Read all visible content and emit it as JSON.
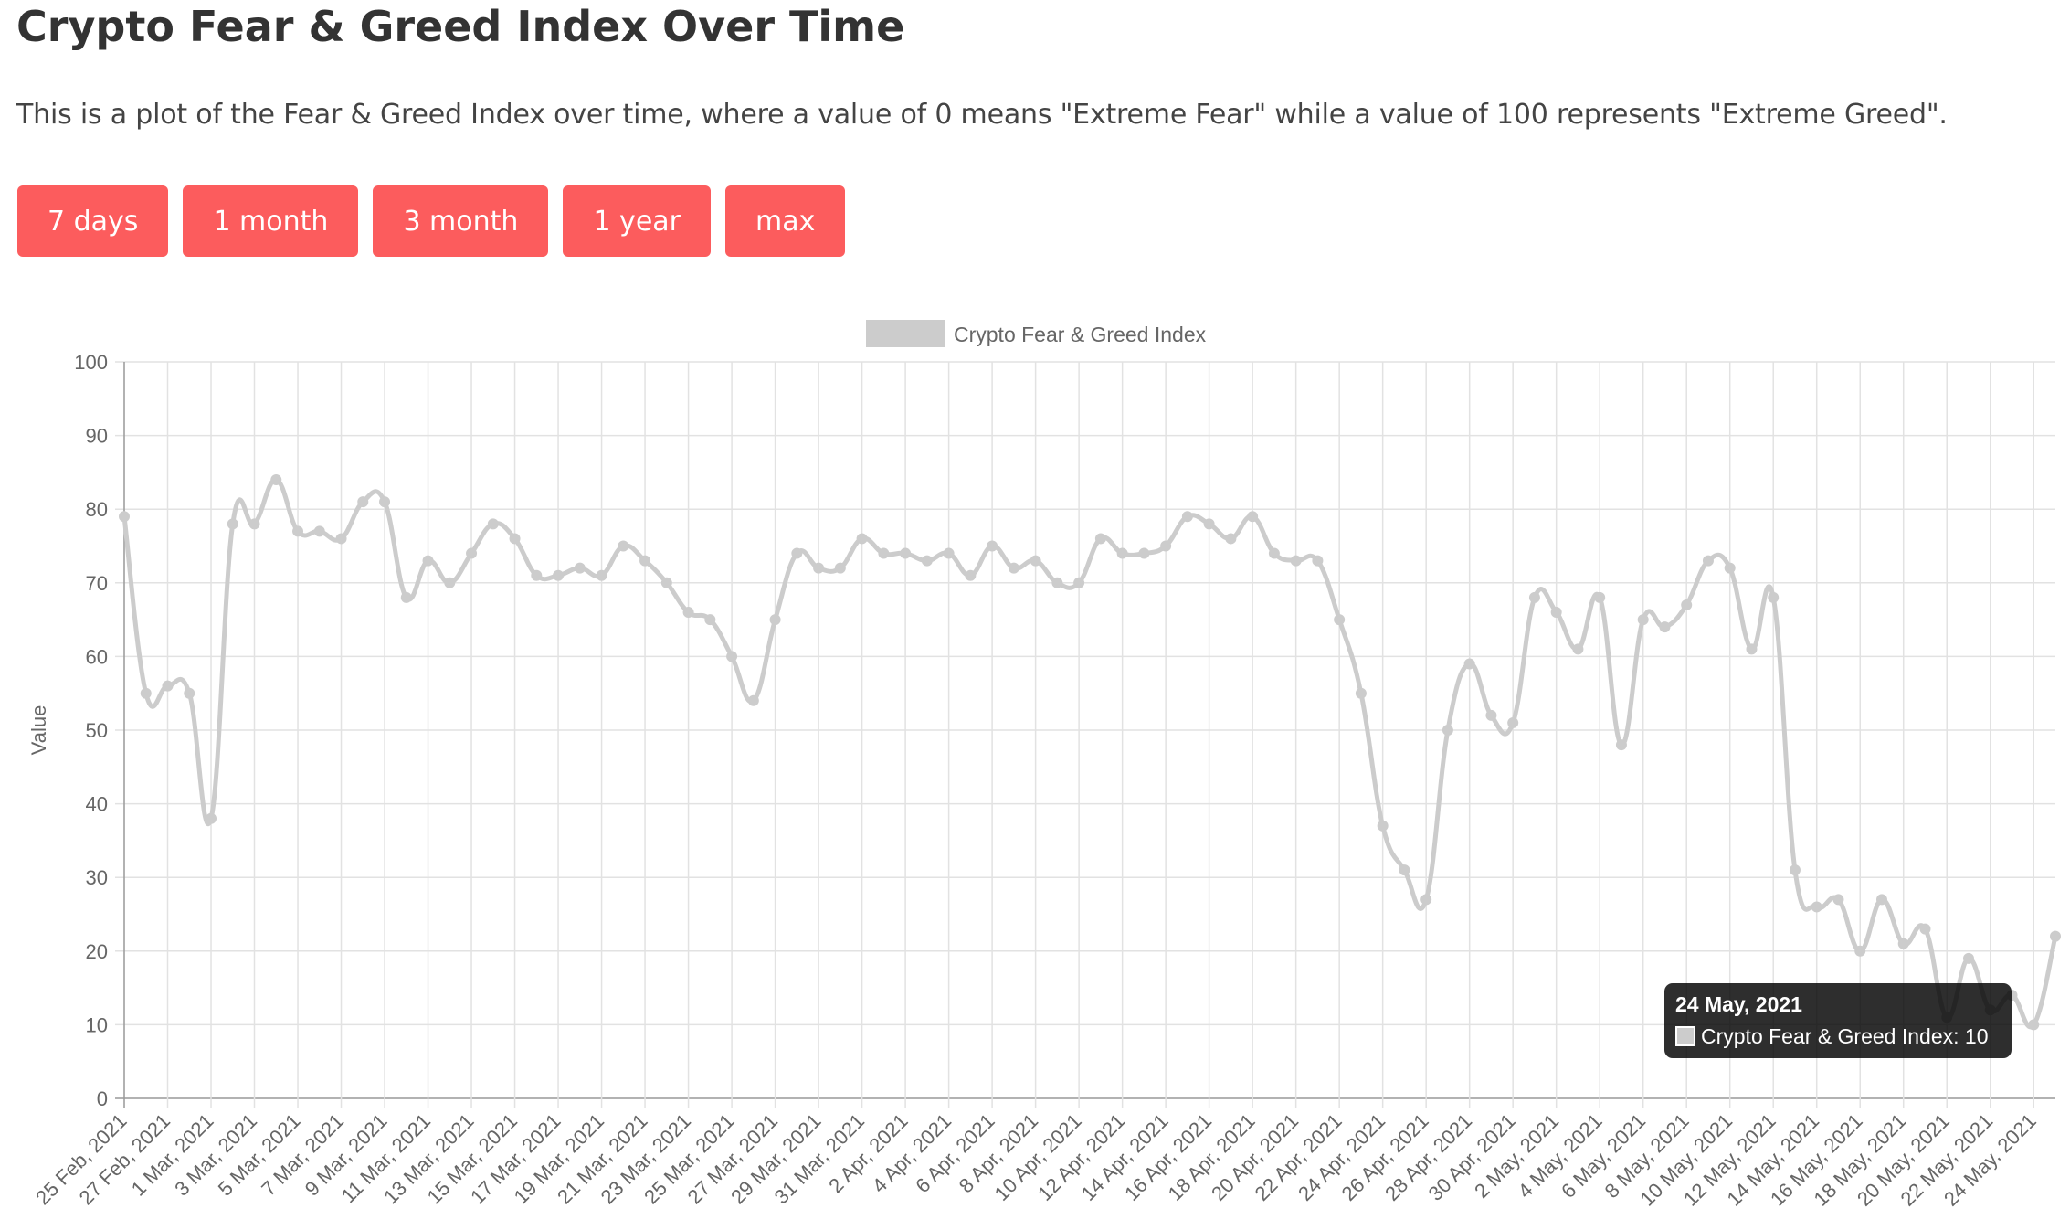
{
  "page": {
    "title": "Crypto Fear & Greed Index Over Time",
    "description": "This is a plot of the Fear & Greed Index over time, where a value of 0 means \"Extreme Fear\" while a value of 100 represents \"Extreme Greed\"."
  },
  "buttons": [
    {
      "label": "7 days"
    },
    {
      "label": "1 month"
    },
    {
      "label": "3 month"
    },
    {
      "label": "1 year"
    },
    {
      "label": "max"
    }
  ],
  "tooltip": {
    "title": "24 May, 2021",
    "label": "Crypto Fear & Greed Index: 10"
  },
  "chart_data": {
    "type": "line",
    "title": "",
    "ylabel": "Value",
    "xlabel": "",
    "ylim": [
      0,
      100
    ],
    "y_ticks": [
      0,
      10,
      20,
      30,
      40,
      50,
      60,
      70,
      80,
      90,
      100
    ],
    "grid": true,
    "legend_position": "top",
    "line_color": "#cccccc",
    "x": [
      "25 Feb, 2021",
      "26 Feb, 2021",
      "27 Feb, 2021",
      "28 Feb, 2021",
      "1 Mar, 2021",
      "2 Mar, 2021",
      "3 Mar, 2021",
      "4 Mar, 2021",
      "5 Mar, 2021",
      "6 Mar, 2021",
      "7 Mar, 2021",
      "8 Mar, 2021",
      "9 Mar, 2021",
      "10 Mar, 2021",
      "11 Mar, 2021",
      "12 Mar, 2021",
      "13 Mar, 2021",
      "14 Mar, 2021",
      "15 Mar, 2021",
      "16 Mar, 2021",
      "17 Mar, 2021",
      "18 Mar, 2021",
      "19 Mar, 2021",
      "20 Mar, 2021",
      "21 Mar, 2021",
      "22 Mar, 2021",
      "23 Mar, 2021",
      "24 Mar, 2021",
      "25 Mar, 2021",
      "26 Mar, 2021",
      "27 Mar, 2021",
      "28 Mar, 2021",
      "29 Mar, 2021",
      "30 Mar, 2021",
      "31 Mar, 2021",
      "1 Apr, 2021",
      "2 Apr, 2021",
      "3 Apr, 2021",
      "4 Apr, 2021",
      "5 Apr, 2021",
      "6 Apr, 2021",
      "7 Apr, 2021",
      "8 Apr, 2021",
      "9 Apr, 2021",
      "10 Apr, 2021",
      "11 Apr, 2021",
      "12 Apr, 2021",
      "13 Apr, 2021",
      "14 Apr, 2021",
      "15 Apr, 2021",
      "16 Apr, 2021",
      "17 Apr, 2021",
      "18 Apr, 2021",
      "19 Apr, 2021",
      "20 Apr, 2021",
      "21 Apr, 2021",
      "22 Apr, 2021",
      "23 Apr, 2021",
      "24 Apr, 2021",
      "25 Apr, 2021",
      "26 Apr, 2021",
      "27 Apr, 2021",
      "28 Apr, 2021",
      "29 Apr, 2021",
      "30 Apr, 2021",
      "1 May, 2021",
      "2 May, 2021",
      "3 May, 2021",
      "4 May, 2021",
      "5 May, 2021",
      "6 May, 2021",
      "7 May, 2021",
      "8 May, 2021",
      "9 May, 2021",
      "10 May, 2021",
      "11 May, 2021",
      "12 May, 2021",
      "13 May, 2021",
      "14 May, 2021",
      "15 May, 2021",
      "16 May, 2021",
      "17 May, 2021",
      "18 May, 2021",
      "19 May, 2021",
      "20 May, 2021",
      "21 May, 2021",
      "22 May, 2021",
      "23 May, 2021",
      "24 May, 2021",
      "25 May, 2021"
    ],
    "x_tick_labels": [
      "25 Feb, 2021",
      "27 Feb, 2021",
      "1 Mar, 2021",
      "3 Mar, 2021",
      "5 Mar, 2021",
      "7 Mar, 2021",
      "9 Mar, 2021",
      "11 Mar, 2021",
      "13 Mar, 2021",
      "15 Mar, 2021",
      "17 Mar, 2021",
      "19 Mar, 2021",
      "21 Mar, 2021",
      "23 Mar, 2021",
      "25 Mar, 2021",
      "27 Mar, 2021",
      "29 Mar, 2021",
      "31 Mar, 2021",
      "2 Apr, 2021",
      "4 Apr, 2021",
      "6 Apr, 2021",
      "8 Apr, 2021",
      "10 Apr, 2021",
      "12 Apr, 2021",
      "14 Apr, 2021",
      "16 Apr, 2021",
      "18 Apr, 2021",
      "20 Apr, 2021",
      "22 Apr, 2021",
      "24 Apr, 2021",
      "26 Apr, 2021",
      "28 Apr, 2021",
      "30 Apr, 2021",
      "2 May, 2021",
      "4 May, 2021",
      "6 May, 2021",
      "8 May, 2021",
      "10 May, 2021",
      "12 May, 2021",
      "14 May, 2021",
      "16 May, 2021",
      "18 May, 2021",
      "20 May, 2021",
      "22 May, 2021",
      "24 May, 2021"
    ],
    "series": [
      {
        "name": "Crypto Fear & Greed Index",
        "values": [
          79,
          55,
          56,
          55,
          38,
          78,
          78,
          84,
          77,
          77,
          76,
          81,
          81,
          68,
          73,
          70,
          74,
          78,
          76,
          71,
          71,
          72,
          71,
          75,
          73,
          70,
          66,
          65,
          60,
          54,
          65,
          74,
          72,
          72,
          76,
          74,
          74,
          73,
          74,
          71,
          75,
          72,
          73,
          70,
          70,
          76,
          74,
          74,
          75,
          79,
          78,
          76,
          79,
          74,
          73,
          73,
          65,
          55,
          37,
          31,
          27,
          50,
          59,
          52,
          51,
          68,
          66,
          61,
          68,
          48,
          65,
          64,
          67,
          73,
          72,
          61,
          68,
          31,
          26,
          27,
          20,
          27,
          21,
          23,
          11,
          19,
          12,
          14,
          10,
          22
        ]
      }
    ]
  }
}
